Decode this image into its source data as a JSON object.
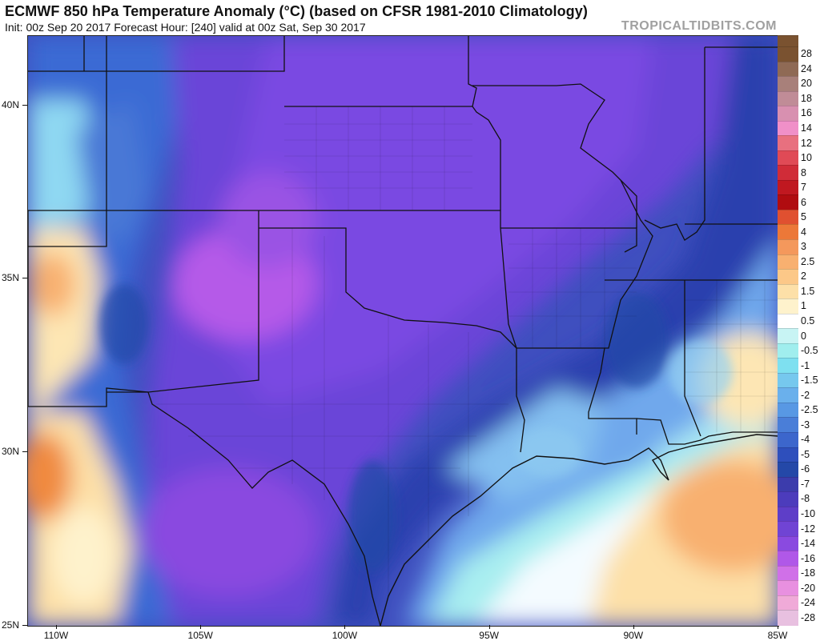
{
  "header": {
    "title": "ECMWF 850 hPa Temperature Anomaly (°C) (based on CFSR 1981-2010 Climatology)",
    "subtitle": "Init: 00z Sep 20 2017   Forecast Hour: [240]   valid at 00z Sat, Sep 30 2017",
    "brand": "TROPICALTIDBITS.COM"
  },
  "map": {
    "lon_range": [
      -111,
      -85
    ],
    "lat_range": [
      25,
      42
    ],
    "lat_labels": [
      {
        "lat": 40,
        "text": "40N"
      },
      {
        "lat": 35,
        "text": "35N"
      },
      {
        "lat": 30,
        "text": "30N"
      },
      {
        "lat": 25,
        "text": "25N"
      }
    ],
    "lon_labels": [
      {
        "lon": -110,
        "text": "110W"
      },
      {
        "lon": -105,
        "text": "105W"
      },
      {
        "lon": -100,
        "text": "100W"
      },
      {
        "lon": -95,
        "text": "95W"
      },
      {
        "lon": -90,
        "text": "90W"
      },
      {
        "lon": -85,
        "text": "85W"
      }
    ]
  },
  "colorbar": {
    "labels": [
      "28",
      "24",
      "20",
      "18",
      "16",
      "14",
      "12",
      "10",
      "8",
      "7",
      "6",
      "5",
      "4",
      "3",
      "2.5",
      "2",
      "1.5",
      "1",
      "0.5",
      "0",
      "-0.5",
      "-1",
      "-1.5",
      "-2",
      "-2.5",
      "-3",
      "-4",
      "-5",
      "-6",
      "-7",
      "-8",
      "-10",
      "-12",
      "-14",
      "-16",
      "-18",
      "-20",
      "-24",
      "-28"
    ],
    "colors": [
      "#7a5230",
      "#8f6a55",
      "#a8807a",
      "#c08c97",
      "#d890b0",
      "#f090c8",
      "#e8707f",
      "#e04a56",
      "#d02c38",
      "#c01820",
      "#b00c10",
      "#e05030",
      "#ec7838",
      "#f4985c",
      "#f8b070",
      "#fcc888",
      "#fde0a8",
      "#fef2cc",
      "#ffffff",
      "#c8f4f4",
      "#a0eeee",
      "#7ee0f0",
      "#76c8ee",
      "#6ab0ec",
      "#5898e4",
      "#4a7ed8",
      "#3c66cc",
      "#2e4fbc",
      "#2448a8",
      "#3c3cac",
      "#4c3cbc",
      "#5e3ec8",
      "#7044d4",
      "#8a4ae0",
      "#b058e8",
      "#d070e8",
      "#e890e0",
      "#f0aad8",
      "#e8c0e0"
    ]
  },
  "legend_extra_top_color": "#7a5230"
}
